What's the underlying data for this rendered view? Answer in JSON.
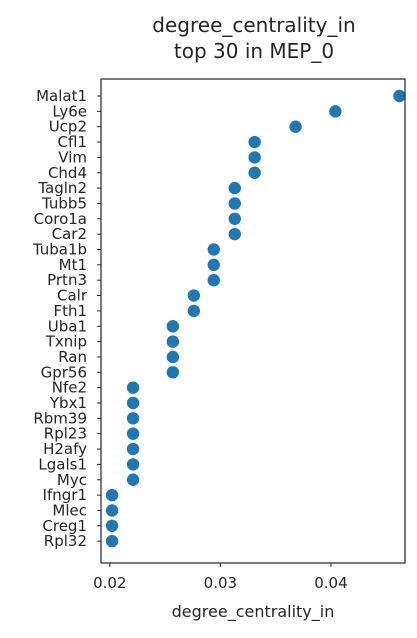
{
  "chart_data": {
    "type": "scatter",
    "title": "degree_centrality_in\ntop 30 in MEP_0",
    "title_lines": [
      "degree_centrality_in",
      "top 30 in MEP_0"
    ],
    "xlabel": "degree_centrality_in",
    "ylabel": "",
    "xlim": [
      0.0192,
      0.0467
    ],
    "xticks": [
      0.02,
      0.03,
      0.04
    ],
    "xtick_labels": [
      "0.02",
      "0.03",
      "0.04"
    ],
    "grid": false,
    "marker_color": "#1f77b4",
    "categories": [
      "Malat1",
      "Ly6e",
      "Ucp2",
      "Cfl1",
      "Vim",
      "Chd4",
      "Tagln2",
      "Tubb5",
      "Coro1a",
      "Car2",
      "Tuba1b",
      "Mt1",
      "Prtn3",
      "Calr",
      "Fth1",
      "Uba1",
      "Txnip",
      "Ran",
      "Gpr56",
      "Nfe2",
      "Ybx1",
      "Rbm39",
      "Rpl23",
      "H2afy",
      "Lgals1",
      "Myc",
      "Ifngr1",
      "Mlec",
      "Creg1",
      "Rpl32"
    ],
    "values": [
      0.0462,
      0.0404,
      0.0368,
      0.0331,
      0.0331,
      0.0331,
      0.0313,
      0.0313,
      0.0313,
      0.0313,
      0.0294,
      0.0294,
      0.0294,
      0.0276,
      0.0276,
      0.0257,
      0.0257,
      0.0257,
      0.0257,
      0.0221,
      0.0221,
      0.0221,
      0.0221,
      0.0221,
      0.0221,
      0.0221,
      0.0202,
      0.0202,
      0.0202,
      0.0202
    ]
  }
}
